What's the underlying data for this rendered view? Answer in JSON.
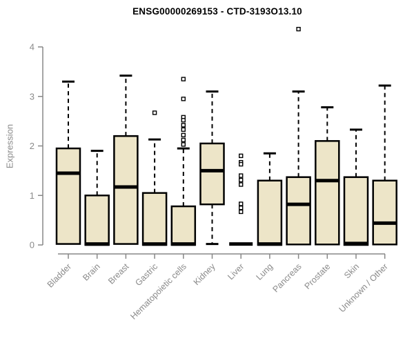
{
  "chart_data": {
    "type": "boxplot",
    "title": "ENSG00000269153 - CTD-3193O13.10",
    "ylabel": "Expression",
    "xlabel": "",
    "ylim": [
      0,
      4
    ],
    "yticks": [
      0,
      1,
      2,
      3,
      4
    ],
    "grid": false,
    "legend": false,
    "categories": [
      "Bladder",
      "Brain",
      "Breast",
      "Gastric",
      "Hematopoietic cells",
      "Kidney",
      "Liver",
      "Lung",
      "Pancreas",
      "Prostate",
      "Skin",
      "Unknown / Other"
    ],
    "boxes": [
      {
        "category": "Bladder",
        "whisker_low": 0,
        "q1": 0.02,
        "median": 1.45,
        "q3": 1.95,
        "whisker_high": 3.3,
        "outliers": []
      },
      {
        "category": "Brain",
        "whisker_low": 0,
        "q1": 0,
        "median": 0.02,
        "q3": 1.0,
        "whisker_high": 1.9,
        "outliers": []
      },
      {
        "category": "Breast",
        "whisker_low": 0,
        "q1": 0.02,
        "median": 1.17,
        "q3": 2.2,
        "whisker_high": 3.42,
        "outliers": []
      },
      {
        "category": "Gastric",
        "whisker_low": 0,
        "q1": 0,
        "median": 0.02,
        "q3": 1.05,
        "whisker_high": 2.13,
        "outliers": [
          2.67
        ]
      },
      {
        "category": "Hematopoietic cells",
        "whisker_low": 0,
        "q1": 0,
        "median": 0.02,
        "q3": 0.78,
        "whisker_high": 1.95,
        "outliers": [
          3.35,
          2.95,
          2.58,
          2.52,
          2.42,
          2.33,
          2.22,
          2.12,
          2.03
        ]
      },
      {
        "category": "Kidney",
        "whisker_low": 0.02,
        "q1": 0.82,
        "median": 1.5,
        "q3": 2.05,
        "whisker_high": 3.1,
        "outliers": []
      },
      {
        "category": "Liver",
        "whisker_low": 0,
        "q1": 0,
        "median": 0.02,
        "q3": 0,
        "whisker_high": 0,
        "outliers": [
          1.8,
          1.67,
          1.63,
          1.4,
          1.31,
          1.22,
          0.83,
          0.75,
          0.67
        ]
      },
      {
        "category": "Lung",
        "whisker_low": 0,
        "q1": 0,
        "median": 0.02,
        "q3": 1.3,
        "whisker_high": 1.85,
        "outliers": []
      },
      {
        "category": "Pancreas",
        "whisker_low": 0,
        "q1": 0.01,
        "median": 0.82,
        "q3": 1.37,
        "whisker_high": 3.1,
        "outliers": [
          4.36
        ]
      },
      {
        "category": "Prostate",
        "whisker_low": 0,
        "q1": 0.01,
        "median": 1.3,
        "q3": 2.1,
        "whisker_high": 2.78,
        "outliers": []
      },
      {
        "category": "Skin",
        "whisker_low": 0,
        "q1": 0,
        "median": 0.03,
        "q3": 1.37,
        "whisker_high": 2.33,
        "outliers": []
      },
      {
        "category": "Unknown / Other",
        "whisker_low": 0,
        "q1": 0.01,
        "median": 0.44,
        "q3": 1.3,
        "whisker_high": 3.22,
        "outliers": []
      }
    ],
    "colors": {
      "box_fill": "#ede5c8",
      "box_border": "#000000",
      "median": "#000000",
      "whisker": "#000000",
      "axis": "#878787",
      "tick_label": "#8a8a8a",
      "title": "#000000",
      "background": "#ffffff"
    }
  }
}
